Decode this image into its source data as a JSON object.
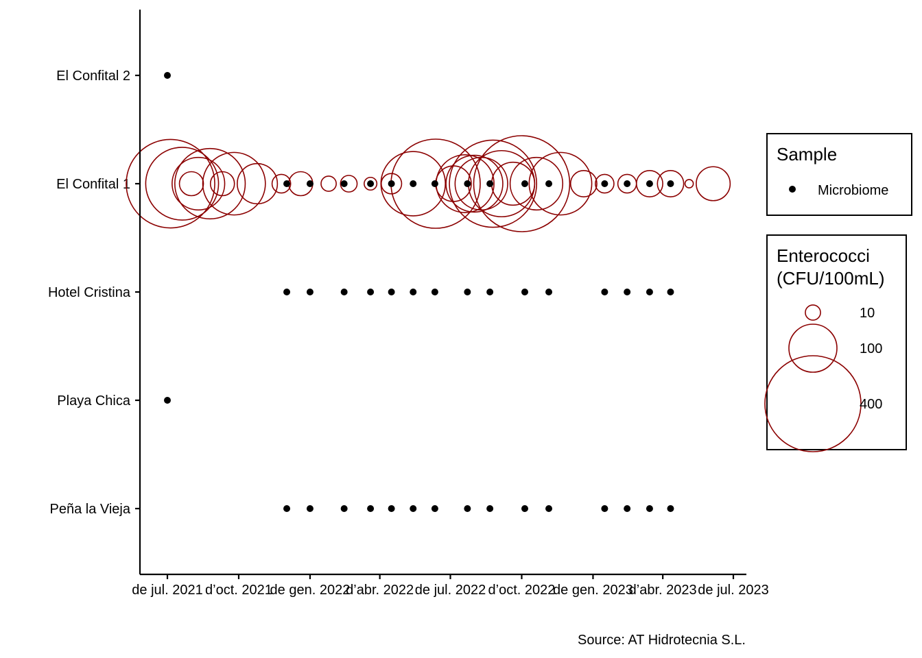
{
  "chart_data": {
    "type": "scatter",
    "x_type": "date",
    "xlim": [
      "2021-05-25",
      "2023-07-30"
    ],
    "x_ticks": [
      {
        "date": "2021-07-01",
        "label": "de jul. 2021"
      },
      {
        "date": "2021-10-01",
        "label": "d’oct. 2021"
      },
      {
        "date": "2022-01-01",
        "label": "de gen. 2022"
      },
      {
        "date": "2022-04-01",
        "label": "d’abr. 2022"
      },
      {
        "date": "2022-07-01",
        "label": "de jul. 2022"
      },
      {
        "date": "2022-10-01",
        "label": "d’oct. 2022"
      },
      {
        "date": "2023-01-01",
        "label": "de gen. 2023"
      },
      {
        "date": "2023-04-01",
        "label": "d’abr. 2023"
      },
      {
        "date": "2023-07-01",
        "label": "de jul. 2023"
      }
    ],
    "y_categories": [
      "El Confital 2",
      "El Confital 1",
      "Hotel Cristina",
      "Playa Chica",
      "Peña la Vieja"
    ],
    "series": [
      {
        "name": "Microbiome",
        "marker": "filled-circle",
        "color": "#000000",
        "points": [
          {
            "site": "El Confital 2",
            "dates": [
              "2021-07-01"
            ]
          },
          {
            "site": "Playa Chica",
            "dates": [
              "2021-07-01"
            ]
          },
          {
            "site": "El Confital 1",
            "dates": [
              "2021-12-02",
              "2022-01-01",
              "2022-02-14",
              "2022-03-20",
              "2022-04-16",
              "2022-05-14",
              "2022-06-11",
              "2022-07-23",
              "2022-08-21",
              "2022-10-05",
              "2022-11-05",
              "2023-01-16",
              "2023-02-14",
              "2023-03-15",
              "2023-04-11"
            ]
          },
          {
            "site": "Hotel Cristina",
            "dates": [
              "2021-12-02",
              "2022-01-01",
              "2022-02-14",
              "2022-03-20",
              "2022-04-16",
              "2022-05-14",
              "2022-06-11",
              "2022-07-23",
              "2022-08-21",
              "2022-10-05",
              "2022-11-05",
              "2023-01-16",
              "2023-02-14",
              "2023-03-15",
              "2023-04-11"
            ]
          },
          {
            "site": "Peña la Vieja",
            "dates": [
              "2021-12-02",
              "2022-01-01",
              "2022-02-14",
              "2022-03-20",
              "2022-04-16",
              "2022-05-14",
              "2022-06-11",
              "2022-07-23",
              "2022-08-21",
              "2022-10-05",
              "2022-11-05",
              "2023-01-16",
              "2023-02-14",
              "2023-03-15",
              "2023-04-11"
            ]
          }
        ]
      },
      {
        "name": "Enterococci",
        "marker": "open-circle-sized",
        "color": "#8b0000",
        "site": "El Confital 1",
        "points": [
          {
            "date": "2021-07-05",
            "value": 340
          },
          {
            "date": "2021-07-20",
            "value": 230
          },
          {
            "date": "2021-08-01",
            "value": 25
          },
          {
            "date": "2021-08-10",
            "value": 120
          },
          {
            "date": "2021-08-25",
            "value": 215
          },
          {
            "date": "2021-09-10",
            "value": 25
          },
          {
            "date": "2021-09-25",
            "value": 170
          },
          {
            "date": "2021-10-25",
            "value": 70
          },
          {
            "date": "2021-11-25",
            "value": 15
          },
          {
            "date": "2021-12-20",
            "value": 25
          },
          {
            "date": "2022-01-25",
            "value": 10
          },
          {
            "date": "2022-02-20",
            "value": 12
          },
          {
            "date": "2022-03-20",
            "value": 7
          },
          {
            "date": "2022-04-16",
            "value": 18
          },
          {
            "date": "2022-05-14",
            "value": 180
          },
          {
            "date": "2022-06-12",
            "value": 345
          },
          {
            "date": "2022-07-05",
            "value": 55
          },
          {
            "date": "2022-07-20",
            "value": 145
          },
          {
            "date": "2022-08-01",
            "value": 140
          },
          {
            "date": "2022-08-10",
            "value": 120
          },
          {
            "date": "2022-08-25",
            "value": 330
          },
          {
            "date": "2022-09-05",
            "value": 190
          },
          {
            "date": "2022-09-20",
            "value": 80
          },
          {
            "date": "2022-10-01",
            "value": 400
          },
          {
            "date": "2022-10-20",
            "value": 120
          },
          {
            "date": "2022-11-20",
            "value": 170
          },
          {
            "date": "2022-12-20",
            "value": 30
          },
          {
            "date": "2023-01-16",
            "value": 15
          },
          {
            "date": "2023-02-14",
            "value": 15
          },
          {
            "date": "2023-03-15",
            "value": 30
          },
          {
            "date": "2023-04-11",
            "value": 30
          },
          {
            "date": "2023-05-05",
            "value": 3
          },
          {
            "date": "2023-06-05",
            "value": 50
          }
        ]
      }
    ],
    "legends": [
      {
        "title": "Sample",
        "entries": [
          "Microbiome"
        ]
      },
      {
        "title_lines": [
          "Enterococci",
          "(CFU/100mL)"
        ],
        "size_breaks": [
          10,
          100,
          400
        ],
        "labels": [
          "10",
          "100",
          "400"
        ]
      }
    ],
    "caption": "Source: AT Hidrotecnia S.L.",
    "grid": false,
    "legend_position": "right"
  }
}
